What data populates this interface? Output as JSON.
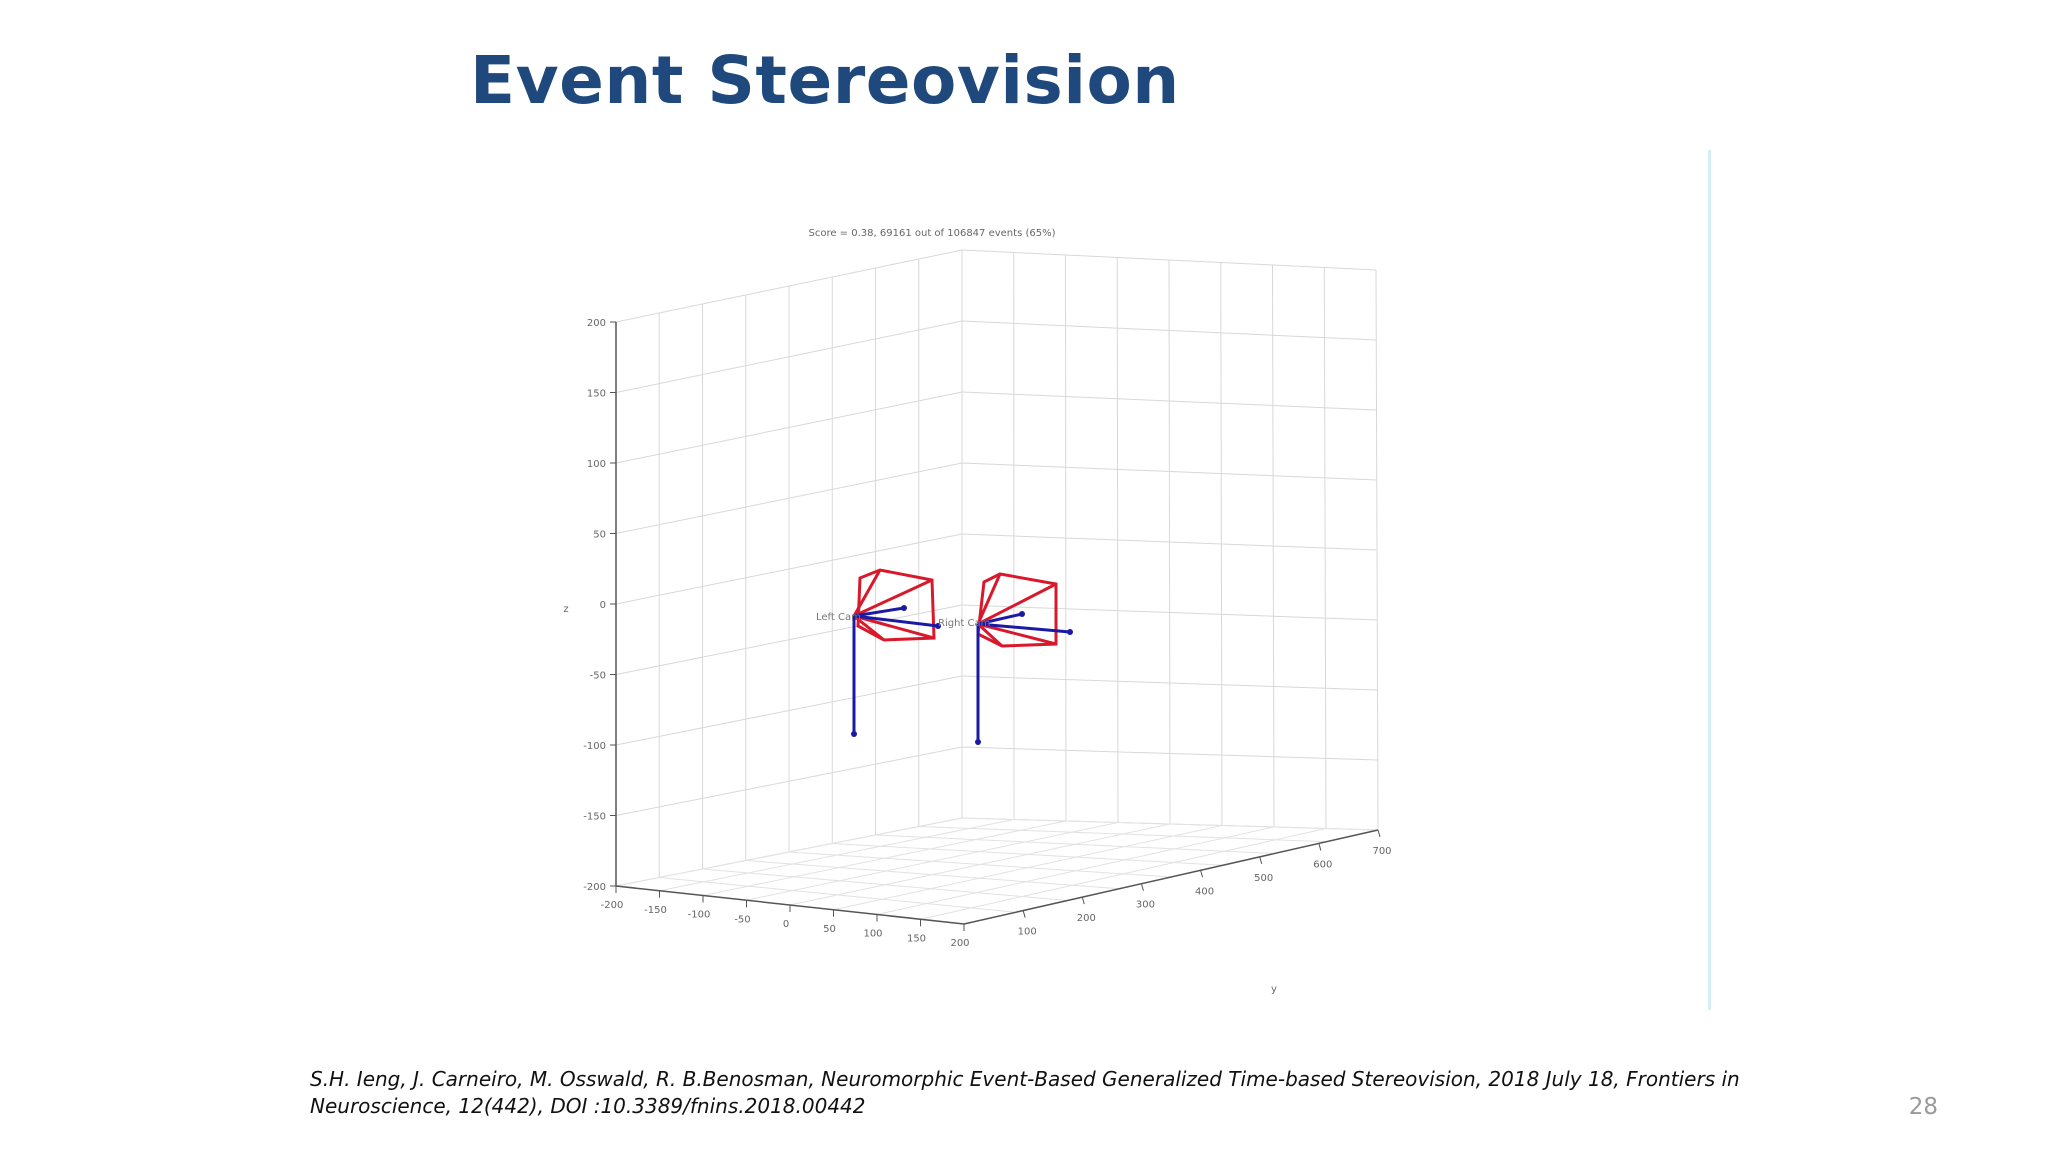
{
  "slide": {
    "title": "Event Stereovision",
    "citation": "S.H. Ieng, J. Carneiro, M. Osswald, R. B.Benosman, Neuromorphic Event-Based Generalized Time-based Stereovision, 2018 July 18, Frontiers in Neuroscience, 12(442), DOI :10.3389/fnins.2018.00442",
    "page_number": "28"
  },
  "chart_data": {
    "type": "scatter",
    "title": "Score = 0.38, 69161 out of 106847 events (65%)",
    "zlabel": "z",
    "xlabel": "",
    "ylabel": "y",
    "z_ticks": [
      "200",
      "150",
      "100",
      "50",
      "0",
      "-50",
      "-100",
      "-150",
      "-200"
    ],
    "x_ticks": [
      "-200",
      "-150",
      "-100",
      "-50",
      "0",
      "50",
      "100",
      "150",
      "200"
    ],
    "y_ticks": [
      "100",
      "200",
      "300",
      "400",
      "500",
      "600",
      "700"
    ],
    "zlim": [
      -200,
      200
    ],
    "xlim": [
      -200,
      200
    ],
    "ylim": [
      0,
      700
    ],
    "grid": true,
    "series": [
      {
        "name": "Left Cam",
        "color": "#d9182b"
      },
      {
        "name": "Right Cam",
        "color": "#d9182b"
      }
    ],
    "axis_color": "#1a1aa6",
    "frustum_color": "#d9182b"
  }
}
